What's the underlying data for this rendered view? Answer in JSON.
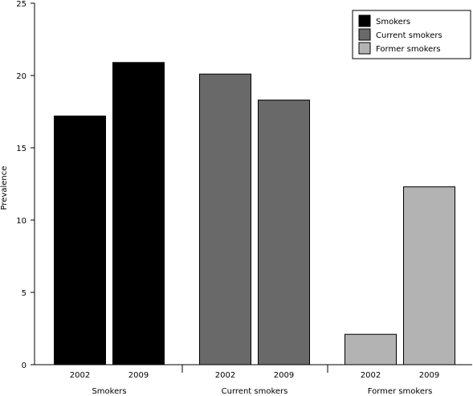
{
  "chart_data": {
    "type": "bar",
    "ylabel": "Prevalence",
    "xlabel": "",
    "ylim": [
      0,
      25
    ],
    "yticks": [
      0,
      5,
      10,
      15,
      20,
      25
    ],
    "grid": false,
    "legend_position": "top-right",
    "groups": [
      {
        "name": "Smokers",
        "color": "#000000",
        "bars": [
          {
            "label": "2002",
            "value": 17.2
          },
          {
            "label": "2009",
            "value": 20.9
          }
        ]
      },
      {
        "name": "Current smokers",
        "color": "#696969",
        "bars": [
          {
            "label": "2002",
            "value": 20.1
          },
          {
            "label": "2009",
            "value": 18.3
          }
        ]
      },
      {
        "name": "Former smokers",
        "color": "#b3b3b3",
        "bars": [
          {
            "label": "2002",
            "value": 2.1
          },
          {
            "label": "2009",
            "value": 12.3
          }
        ]
      }
    ],
    "legend": [
      {
        "label": "Smokers",
        "color": "#000000"
      },
      {
        "label": "Current smokers",
        "color": "#696969"
      },
      {
        "label": "Former smokers",
        "color": "#b3b3b3"
      }
    ]
  }
}
